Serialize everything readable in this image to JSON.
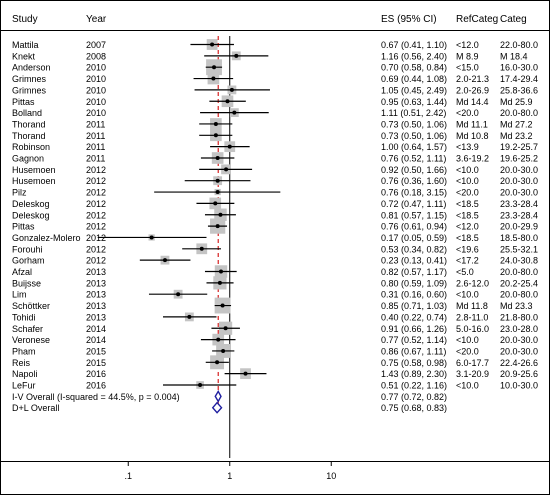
{
  "headers": {
    "study": "Study",
    "year": "Year",
    "es": "ES (95% CI)",
    "refcateg": "RefCateg",
    "categ": "Categ"
  },
  "chart_data": {
    "type": "forest",
    "x_scale": "log",
    "x_ticks": [
      0.1,
      1,
      10
    ],
    "x_tick_labels": [
      ".1",
      "1",
      "10"
    ],
    "null_line": 1,
    "overall_line": 0.77,
    "rows": [
      {
        "study": "Mattila",
        "year": "2007",
        "es": 0.67,
        "lo": 0.41,
        "hi": 1.1,
        "es_text": "0.67 (0.41, 1.10)",
        "ref": "<12.0",
        "categ": "22.0-80.0",
        "weight": 6
      },
      {
        "study": "Knekt",
        "year": "2008",
        "es": 1.16,
        "lo": 0.56,
        "hi": 2.4,
        "es_text": "1.16 (0.56, 2.40)",
        "ref": "M 8.9",
        "categ": "M 18.4",
        "weight": 4
      },
      {
        "study": "Anderson",
        "year": "2010",
        "es": 0.7,
        "lo": 0.58,
        "hi": 0.84,
        "es_text": "0.70 (0.58, 0.84)",
        "ref": "<15.0",
        "categ": "16.0-30.0",
        "weight": 13
      },
      {
        "study": "Grimnes",
        "year": "2010",
        "es": 0.69,
        "lo": 0.44,
        "hi": 1.08,
        "es_text": "0.69 (0.44, 1.08)",
        "ref": "2.0-21.3",
        "categ": "17.4-29.4",
        "weight": 7
      },
      {
        "study": "Grimnes",
        "year": "2010",
        "es": 1.05,
        "lo": 0.45,
        "hi": 2.49,
        "es_text": "1.05 (0.45, 2.49)",
        "ref": "2.0-26.9",
        "categ": "25.8-36.6",
        "weight": 4
      },
      {
        "study": "Pittas",
        "year": "2010",
        "es": 0.95,
        "lo": 0.63,
        "hi": 1.44,
        "es_text": "0.95 (0.63, 1.44)",
        "ref": "Md 14.4",
        "categ": "Md 25.9",
        "weight": 7
      },
      {
        "study": "Bolland",
        "year": "2010",
        "es": 1.11,
        "lo": 0.51,
        "hi": 2.42,
        "es_text": "1.11 (0.51, 2.42)",
        "ref": "<20.0",
        "categ": "20.0-80.0",
        "weight": 4
      },
      {
        "study": "Thorand",
        "year": "2011",
        "es": 0.73,
        "lo": 0.5,
        "hi": 1.06,
        "es_text": "0.73 (0.50, 1.06)",
        "ref": "Md 11.1",
        "categ": "Md 27.2",
        "weight": 7
      },
      {
        "study": "Thorand",
        "year": "2011",
        "es": 0.73,
        "lo": 0.5,
        "hi": 1.06,
        "es_text": "0.73 (0.50, 1.06)",
        "ref": "Md 10.8",
        "categ": "Md 23.2",
        "weight": 7
      },
      {
        "study": "Robinson",
        "year": "2011",
        "es": 1.0,
        "lo": 0.64,
        "hi": 1.57,
        "es_text": "1.00 (0.64, 1.57)",
        "ref": "<13.9",
        "categ": "19.2-25.7",
        "weight": 6
      },
      {
        "study": "Gagnon",
        "year": "2011",
        "es": 0.76,
        "lo": 0.52,
        "hi": 1.11,
        "es_text": "0.76 (0.52, 1.11)",
        "ref": "3.6-19.2",
        "categ": "19.6-25.2",
        "weight": 7
      },
      {
        "study": "Husemoen",
        "year": "2012",
        "es": 0.92,
        "lo": 0.5,
        "hi": 1.66,
        "es_text": "0.92 (0.50, 1.66)",
        "ref": "<10.0",
        "categ": "20.0-30.0",
        "weight": 5
      },
      {
        "study": "Husemoen",
        "year": "2012",
        "es": 0.76,
        "lo": 0.36,
        "hi": 1.6,
        "es_text": "0.76 (0.36, 1.60)",
        "ref": "<10.0",
        "categ": "20.0-30.0",
        "weight": 4
      },
      {
        "study": "Pilz",
        "year": "2012",
        "es": 0.76,
        "lo": 0.18,
        "hi": 3.15,
        "es_text": "0.76 (0.18, 3.15)",
        "ref": "<20.0",
        "categ": "20.0-30.0",
        "weight": 2
      },
      {
        "study": "Deleskog",
        "year": "2012",
        "es": 0.72,
        "lo": 0.47,
        "hi": 1.11,
        "es_text": "0.72 (0.47, 1.11)",
        "ref": "<18.5",
        "categ": "23.3-28.4",
        "weight": 7
      },
      {
        "study": "Deleskog",
        "year": "2012",
        "es": 0.81,
        "lo": 0.57,
        "hi": 1.15,
        "es_text": "0.81 (0.57, 1.15)",
        "ref": "<18.5",
        "categ": "23.3-28.4",
        "weight": 8
      },
      {
        "study": "Pittas",
        "year": "2012",
        "es": 0.76,
        "lo": 0.61,
        "hi": 0.94,
        "es_text": "0.76 (0.61, 0.94)",
        "ref": "<12.0",
        "categ": "20.0-29.9",
        "weight": 12
      },
      {
        "study": "Gonzalez-Molero",
        "year": "2012",
        "es": 0.17,
        "lo": 0.05,
        "hi": 0.59,
        "es_text": "0.17 (0.05, 0.59)",
        "ref": "<18.5",
        "categ": "18.5-80.0",
        "weight": 2
      },
      {
        "study": "Forouhi",
        "year": "2012",
        "es": 0.53,
        "lo": 0.34,
        "hi": 0.82,
        "es_text": "0.53 (0.34, 0.82)",
        "ref": "<19.6",
        "categ": "25.5-32.1",
        "weight": 6
      },
      {
        "study": "Gorham",
        "year": "2012",
        "es": 0.23,
        "lo": 0.13,
        "hi": 0.41,
        "es_text": "0.23 (0.13, 0.41)",
        "ref": "<17.2",
        "categ": "24.0-30.8",
        "weight": 4
      },
      {
        "study": "Afzal",
        "year": "2013",
        "es": 0.82,
        "lo": 0.57,
        "hi": 1.17,
        "es_text": "0.82 (0.57, 1.17)",
        "ref": "<5.0",
        "categ": "20.0-80.0",
        "weight": 8
      },
      {
        "study": "Buijsse",
        "year": "2013",
        "es": 0.8,
        "lo": 0.59,
        "hi": 1.09,
        "es_text": "0.80 (0.59, 1.09)",
        "ref": "2.6-12.0",
        "categ": "20.2-25.4",
        "weight": 9
      },
      {
        "study": "Lim",
        "year": "2013",
        "es": 0.31,
        "lo": 0.16,
        "hi": 0.6,
        "es_text": "0.31 (0.16, 0.60)",
        "ref": "<10.0",
        "categ": "20.0-80.0",
        "weight": 4
      },
      {
        "study": "Schöttker",
        "year": "2013",
        "es": 0.85,
        "lo": 0.71,
        "hi": 1.03,
        "es_text": "0.85 (0.71, 1.03)",
        "ref": "Md 11.8",
        "categ": "Md 23.3",
        "weight": 13
      },
      {
        "study": "Tohidi",
        "year": "2013",
        "es": 0.4,
        "lo": 0.22,
        "hi": 0.74,
        "es_text": "0.40 (0.22, 0.74)",
        "ref": "2.8-11.0",
        "categ": "21.8-80.0",
        "weight": 4
      },
      {
        "study": "Schafer",
        "year": "2014",
        "es": 0.91,
        "lo": 0.66,
        "hi": 1.26,
        "es_text": "0.91 (0.66, 1.26)",
        "ref": "5.0-16.0",
        "categ": "23.0-28.0",
        "weight": 9
      },
      {
        "study": "Veronese",
        "year": "2014",
        "es": 0.77,
        "lo": 0.52,
        "hi": 1.14,
        "es_text": "0.77 (0.52, 1.14)",
        "ref": "<10.0",
        "categ": "20.0-30.0",
        "weight": 7
      },
      {
        "study": "Pham",
        "year": "2015",
        "es": 0.86,
        "lo": 0.67,
        "hi": 1.11,
        "es_text": "0.86 (0.67, 1.11)",
        "ref": "<20.0",
        "categ": "20.0-30.0",
        "weight": 10
      },
      {
        "study": "Reis",
        "year": "2015",
        "es": 0.75,
        "lo": 0.58,
        "hi": 0.98,
        "es_text": "0.75 (0.58, 0.98)",
        "ref": "6.0-17.7",
        "categ": "22.4-26.6",
        "weight": 10
      },
      {
        "study": "Napoli",
        "year": "2016",
        "es": 1.43,
        "lo": 0.89,
        "hi": 2.3,
        "es_text": "1.43 (0.89, 2.30)",
        "ref": "3.1-20.9",
        "categ": "20.9-25.6",
        "weight": 6
      },
      {
        "study": "LeFur",
        "year": "2016",
        "es": 0.51,
        "lo": 0.22,
        "hi": 1.16,
        "es_text": "0.51 (0.22, 1.16)",
        "ref": "<10.0",
        "categ": "10.0-30.0",
        "weight": 3
      }
    ],
    "overall": [
      {
        "label": "I-V Overall  (I-squared = 44.5%, p = 0.004)",
        "es": 0.77,
        "lo": 0.72,
        "hi": 0.82,
        "es_text": "0.77 (0.72, 0.82)"
      },
      {
        "label": "D+L Overall",
        "es": 0.75,
        "lo": 0.68,
        "hi": 0.83,
        "es_text": "0.75 (0.68, 0.83)"
      }
    ]
  }
}
